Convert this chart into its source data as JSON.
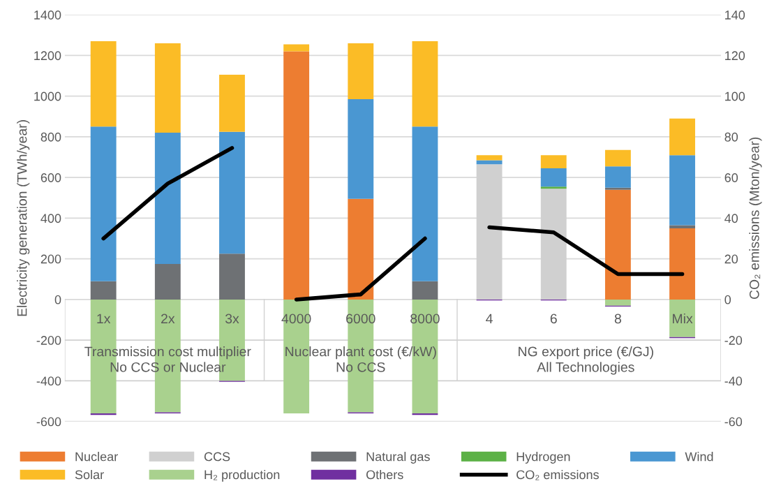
{
  "chart_data": {
    "type": "bar",
    "stacked": true,
    "categories": [
      "1x",
      "2x",
      "3x",
      "4000",
      "6000",
      "8000",
      "4",
      "6",
      "8",
      "Mix"
    ],
    "ylabel": "Electricity generation (TWh/year)",
    "y2label": "CO₂ emissions (Mton/year)",
    "ylim": [
      -600,
      1400
    ],
    "yticks": [
      -600,
      -400,
      -200,
      0,
      200,
      400,
      600,
      800,
      1000,
      1200,
      1400
    ],
    "y2lim": [
      -60,
      140
    ],
    "y2ticks": [
      -60,
      -40,
      -20,
      0,
      20,
      40,
      60,
      80,
      100,
      120,
      140
    ],
    "grid": "y",
    "legend": "bottom",
    "annotations": [
      "Transmission cost multiplier\nNo CCS or Nuclear",
      "Nuclear plant cost (€/kW)\nNo CCS",
      "NG export price (€/GJ)\nAll Technologies"
    ],
    "series": [
      {
        "name": "Nuclear",
        "color": "#ed7d31",
        "values": [
          0,
          0,
          0,
          1220,
          495,
          0,
          0,
          0,
          540,
          350
        ]
      },
      {
        "name": "CCS",
        "color": "#d0d0d0",
        "values": [
          0,
          0,
          0,
          0,
          0,
          0,
          665,
          545,
          0,
          0
        ]
      },
      {
        "name": "Natural gas",
        "color": "#6e7174",
        "values": [
          90,
          175,
          225,
          0,
          0,
          90,
          0,
          0,
          10,
          15
        ]
      },
      {
        "name": "Hydrogen",
        "color": "#5cb146",
        "values": [
          0,
          0,
          0,
          0,
          0,
          0,
          0,
          10,
          0,
          0
        ]
      },
      {
        "name": "Wind",
        "color": "#4a97d2",
        "values": [
          760,
          645,
          600,
          0,
          490,
          760,
          20,
          90,
          105,
          345
        ]
      },
      {
        "name": "Solar",
        "color": "#fbbc26",
        "values": [
          420,
          440,
          280,
          35,
          275,
          420,
          25,
          65,
          80,
          180
        ]
      },
      {
        "name": "H₂ production",
        "color": "#a9d18e",
        "values": [
          -560,
          -555,
          -400,
          -560,
          -555,
          -560,
          0,
          0,
          -30,
          -185
        ]
      },
      {
        "name": "Others",
        "color": "#7030a0",
        "values": [
          -8,
          -5,
          -5,
          0,
          -5,
          -8,
          -5,
          -5,
          -5,
          -5
        ]
      },
      {
        "name": "CO₂ emissions",
        "color": "#000000",
        "type": "line",
        "axis": "y2",
        "values": [
          30,
          57,
          74.5,
          0,
          2.5,
          30,
          35.5,
          33,
          12.5,
          12.5
        ]
      }
    ]
  }
}
